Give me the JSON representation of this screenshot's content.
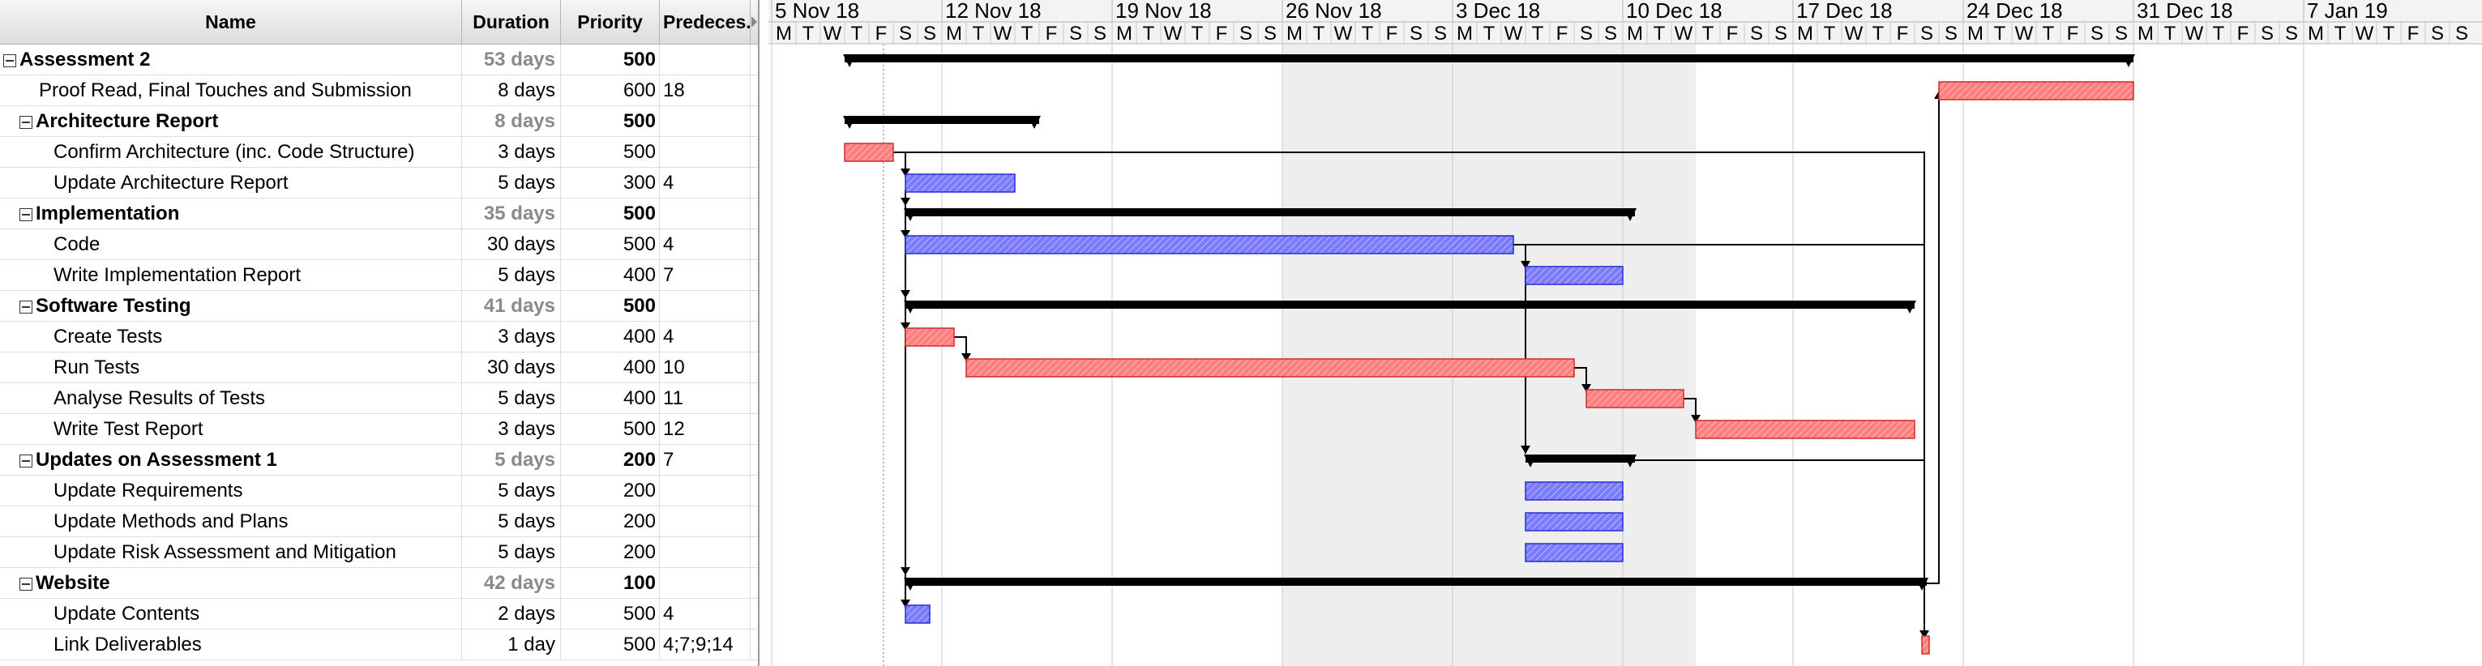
{
  "table": {
    "columns": {
      "name": "Name",
      "duration": "Duration",
      "priority": "Priority",
      "predecessors": "Predeces."
    },
    "rows": [
      {
        "name": "Assessment 2",
        "duration": "53 days",
        "priority": "500",
        "predecessors": "",
        "group": true,
        "level": 0
      },
      {
        "name": "Proof Read, Final Touches and Submission",
        "duration": "8 days",
        "priority": "600",
        "predecessors": "18",
        "group": false,
        "level": 1
      },
      {
        "name": "Architecture Report",
        "duration": "8 days",
        "priority": "500",
        "predecessors": "",
        "group": true,
        "level": 1
      },
      {
        "name": "Confirm Architecture (inc. Code Structure)",
        "duration": "3 days",
        "priority": "500",
        "predecessors": "",
        "group": false,
        "level": 2
      },
      {
        "name": "Update Architecture Report",
        "duration": "5 days",
        "priority": "300",
        "predecessors": "4",
        "group": false,
        "level": 2
      },
      {
        "name": "Implementation",
        "duration": "35 days",
        "priority": "500",
        "predecessors": "",
        "group": true,
        "level": 1
      },
      {
        "name": "Code",
        "duration": "30 days",
        "priority": "500",
        "predecessors": "4",
        "group": false,
        "level": 2
      },
      {
        "name": "Write Implementation Report",
        "duration": "5 days",
        "priority": "400",
        "predecessors": "7",
        "group": false,
        "level": 2
      },
      {
        "name": "Software Testing",
        "duration": "41 days",
        "priority": "500",
        "predecessors": "",
        "group": true,
        "level": 1
      },
      {
        "name": "Create Tests",
        "duration": "3 days",
        "priority": "400",
        "predecessors": "4",
        "group": false,
        "level": 2
      },
      {
        "name": "Run Tests",
        "duration": "30 days",
        "priority": "400",
        "predecessors": "10",
        "group": false,
        "level": 2
      },
      {
        "name": "Analyse Results of Tests",
        "duration": "5 days",
        "priority": "400",
        "predecessors": "11",
        "group": false,
        "level": 2
      },
      {
        "name": "Write Test Report",
        "duration": "3 days",
        "priority": "500",
        "predecessors": "12",
        "group": false,
        "level": 2
      },
      {
        "name": "Updates on Assessment 1",
        "duration": "5 days",
        "priority": "200",
        "predecessors": "7",
        "group": true,
        "level": 1
      },
      {
        "name": "Update Requirements",
        "duration": "5 days",
        "priority": "200",
        "predecessors": "",
        "group": false,
        "level": 2
      },
      {
        "name": "Update Methods and Plans",
        "duration": "5 days",
        "priority": "200",
        "predecessors": "",
        "group": false,
        "level": 2
      },
      {
        "name": "Update Risk Assessment and Mitigation",
        "duration": "5 days",
        "priority": "200",
        "predecessors": "",
        "group": false,
        "level": 2
      },
      {
        "name": "Website",
        "duration": "42 days",
        "priority": "100",
        "predecessors": "",
        "group": true,
        "level": 1
      },
      {
        "name": "Update Contents",
        "duration": "2 days",
        "priority": "500",
        "predecessors": "4",
        "group": false,
        "level": 2
      },
      {
        "name": "Link Deliverables",
        "duration": "1 day",
        "priority": "500",
        "predecessors": "4;7;9;14",
        "group": false,
        "level": 2
      }
    ]
  },
  "timeline": {
    "weeks": [
      "5 Nov 18",
      "12 Nov 18",
      "19 Nov 18",
      "26 Nov 18",
      "3 Dec 18",
      "10 Dec 18",
      "17 Dec 18",
      "24 Dec 18",
      "31 Dec 18",
      "7 Jan 19"
    ],
    "days": [
      "M",
      "T",
      "W",
      "T",
      "F",
      "S",
      "S"
    ],
    "today_day_index": 5,
    "holiday_range_days": [
      21,
      38
    ],
    "colors": {
      "summary": "#000000",
      "critical": "#ff7f7f",
      "critical_border": "#d22b2b",
      "normal": "#7b7bff",
      "normal_border": "#2a2ad6",
      "holiday": "#eeeeee",
      "link": "#000000"
    }
  },
  "bars": [
    {
      "row": 0,
      "type": "summary",
      "start": 3.0,
      "end": 56.0
    },
    {
      "row": 1,
      "type": "critical",
      "start": 48.0,
      "end": 56.0
    },
    {
      "row": 2,
      "type": "summary",
      "start": 3.0,
      "end": 11.0
    },
    {
      "row": 3,
      "type": "critical",
      "start": 3.0,
      "end": 5.0
    },
    {
      "row": 4,
      "type": "normal",
      "start": 5.5,
      "end": 10.0
    },
    {
      "row": 5,
      "type": "summary",
      "start": 5.5,
      "end": 35.5
    },
    {
      "row": 6,
      "type": "normal",
      "start": 5.5,
      "end": 30.5
    },
    {
      "row": 7,
      "type": "normal",
      "start": 31.0,
      "end": 35.0
    },
    {
      "row": 8,
      "type": "summary",
      "start": 5.5,
      "end": 47.0
    },
    {
      "row": 9,
      "type": "critical",
      "start": 5.5,
      "end": 7.5
    },
    {
      "row": 10,
      "type": "critical",
      "start": 8.0,
      "end": 33.0
    },
    {
      "row": 11,
      "type": "critical",
      "start": 33.5,
      "end": 37.5
    },
    {
      "row": 12,
      "type": "critical",
      "start": 38.0,
      "end": 47.0
    },
    {
      "row": 13,
      "type": "summary",
      "start": 31.0,
      "end": 35.5
    },
    {
      "row": 14,
      "type": "normal",
      "start": 31.0,
      "end": 35.0
    },
    {
      "row": 15,
      "type": "normal",
      "start": 31.0,
      "end": 35.0
    },
    {
      "row": 16,
      "type": "normal",
      "start": 31.0,
      "end": 35.0
    },
    {
      "row": 17,
      "type": "summary",
      "start": 5.5,
      "end": 47.5
    },
    {
      "row": 18,
      "type": "normal",
      "start": 5.5,
      "end": 6.5
    },
    {
      "row": 19,
      "type": "critical",
      "start": 47.3,
      "end": 47.6
    }
  ]
}
